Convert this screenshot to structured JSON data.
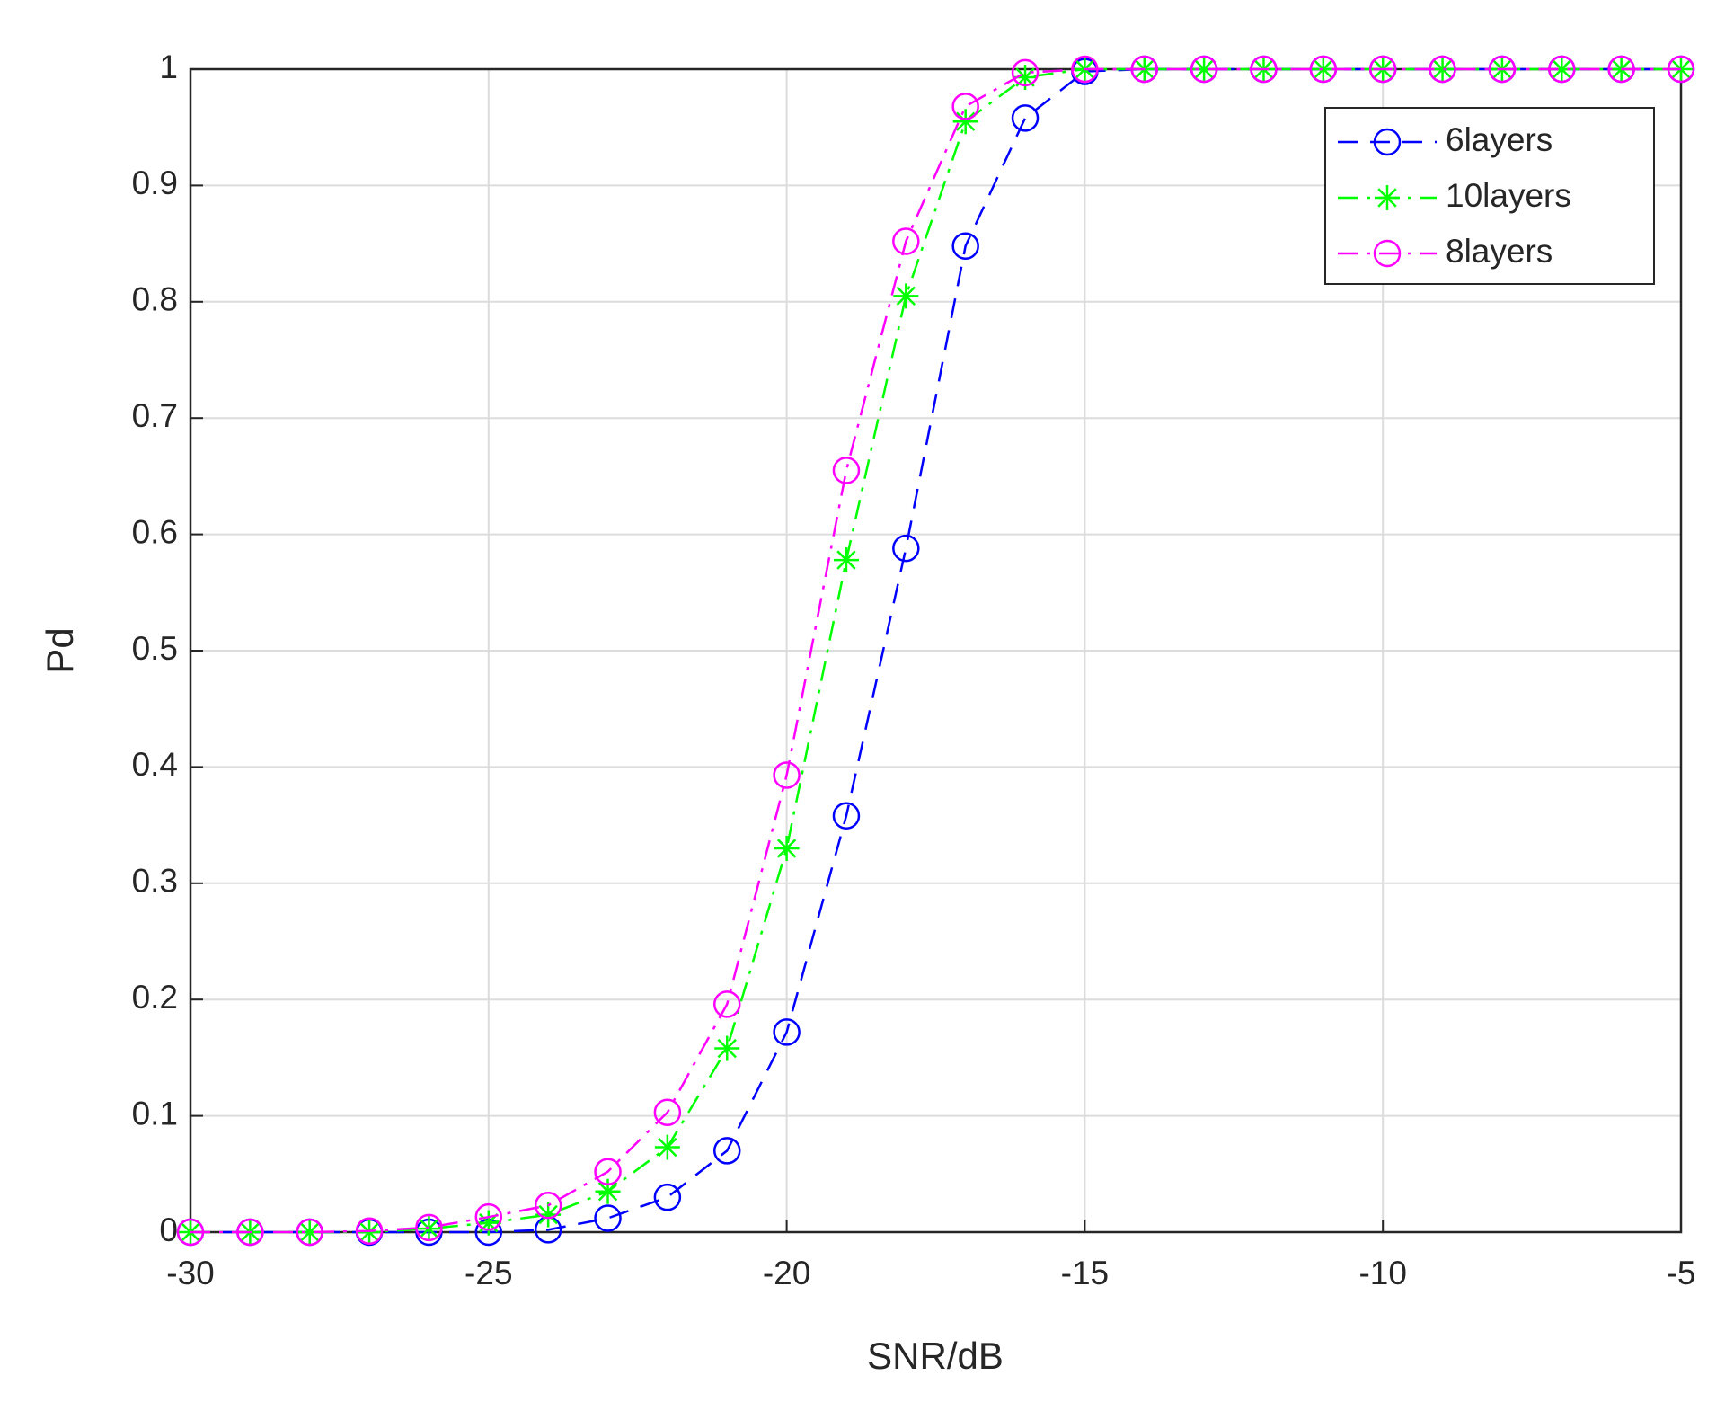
{
  "chart_data": {
    "type": "line",
    "xlabel": "SNR/dB",
    "ylabel": "Pd",
    "x": [
      -30,
      -29,
      -28,
      -27,
      -26,
      -25,
      -24,
      -23,
      -22,
      -21,
      -20,
      -19,
      -18,
      -17,
      -16,
      -15,
      -14,
      -13,
      -12,
      -11,
      -10,
      -9,
      -8,
      -7,
      -6,
      -5
    ],
    "series": [
      {
        "name": "6layers",
        "color": "#0000ff",
        "marker": "circle",
        "line_style": "dashed",
        "values": [
          0,
          0,
          0,
          0,
          0,
          0,
          0.002,
          0.012,
          0.03,
          0.07,
          0.172,
          0.358,
          0.588,
          0.848,
          0.958,
          0.998,
          1,
          1,
          1,
          1,
          1,
          1,
          1,
          1,
          1,
          1
        ]
      },
      {
        "name": "10layers",
        "color": "#00ff00",
        "marker": "asterisk",
        "line_style": "dashdot",
        "values": [
          0,
          0,
          0,
          0,
          0.003,
          0.008,
          0.015,
          0.035,
          0.073,
          0.158,
          0.33,
          0.578,
          0.805,
          0.955,
          0.993,
          1,
          1,
          1,
          1,
          1,
          1,
          1,
          1,
          1,
          1,
          1
        ]
      },
      {
        "name": "8layers",
        "color": "#ff00ff",
        "marker": "circle",
        "line_style": "dashdot",
        "values": [
          0,
          0,
          0,
          0.001,
          0.004,
          0.013,
          0.023,
          0.052,
          0.103,
          0.196,
          0.393,
          0.655,
          0.852,
          0.968,
          0.997,
          1,
          1,
          1,
          1,
          1,
          1,
          1,
          1,
          1,
          1,
          1
        ]
      }
    ],
    "xlim": [
      -30,
      -5
    ],
    "xticks": [
      -30,
      -25,
      -20,
      -15,
      -10,
      -5
    ],
    "ylim": [
      0,
      1
    ],
    "yticks": [
      0,
      0.1,
      0.2,
      0.3,
      0.4,
      0.5,
      0.6,
      0.7,
      0.8,
      0.9,
      1
    ],
    "grid": true,
    "legend": "northeast"
  }
}
